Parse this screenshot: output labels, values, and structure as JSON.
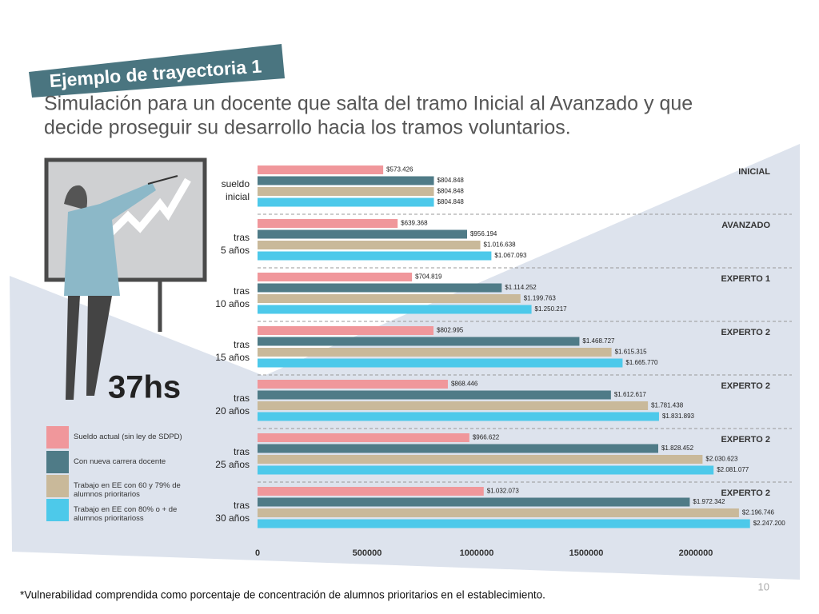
{
  "title": "Ejemplo de trayectoria 1",
  "subtitle": [
    "Simulación para un docente que salta del tramo Inicial al Avanzado y que",
    "decide proseguir su desarrollo hacia los tramos voluntarios."
  ],
  "hours": "37hs",
  "footnote": "*Vulnerabilidad comprendida como porcentaje de concentración de alumnos prioritarios en el establecimiento.",
  "page_number": "10",
  "chart_data": {
    "type": "bar",
    "orientation": "horizontal",
    "categories": [
      [
        "sueldo",
        "inicial"
      ],
      [
        "tras",
        "5 años"
      ],
      [
        "tras",
        "10 años"
      ],
      [
        "tras",
        "15 años"
      ],
      [
        "tras",
        "20 años"
      ],
      [
        "tras",
        "25 años"
      ],
      [
        "tras",
        "30 años"
      ]
    ],
    "tiers": [
      "INICIAL",
      "AVANZADO",
      "EXPERTO 1",
      "EXPERTO 2",
      "EXPERTO 2",
      "EXPERTO 2",
      "EXPERTO 2"
    ],
    "series": [
      {
        "name": "Sueldo actual (sin ley de SDPD)",
        "color": "#f0979b",
        "values": [
          573426,
          639368,
          704819,
          802995,
          868446,
          966622,
          1032073
        ],
        "value_labels": [
          "$573.426",
          "$639.368",
          "$704.819",
          "$802.995",
          "$868.446",
          "$966.622",
          "$1.032.073"
        ]
      },
      {
        "name": "Con nueva carrera docente",
        "color": "#4f7b87",
        "values": [
          804848,
          956194,
          1114252,
          1468727,
          1612617,
          1828452,
          1972342
        ],
        "value_labels": [
          "$804.848",
          "$956.194",
          "$1.114.252",
          "$1.468.727",
          "$1.612.617",
          "$1.828.452",
          "$1.972.342"
        ]
      },
      {
        "name": "Trabajo en EE con 60 y 79% de alumnos prioritarios",
        "color": "#c9b99a",
        "values": [
          804848,
          1016638,
          1199763,
          1615315,
          1781438,
          2030623,
          2196746
        ],
        "value_labels": [
          "$804.848",
          "$1.016.638",
          "$1.199.763",
          "$1.615.315",
          "$1.781.438",
          "$2.030.623",
          "$2.196.746"
        ]
      },
      {
        "name": "Trabajo en EE con 80% o + de alumnos prioritarioss",
        "color": "#4dc9ea",
        "values": [
          804848,
          1067093,
          1250217,
          1665770,
          1831893,
          2081077,
          2247200
        ],
        "value_labels": [
          "$804.848",
          "$1.067.093",
          "$1.250.217",
          "$1.665.770",
          "$1.831.893",
          "$2.081.077",
          "$2.247.200"
        ]
      }
    ],
    "xlim": [
      0,
      2000000
    ],
    "xticks": [
      0,
      500000,
      1000000,
      1500000,
      2000000
    ]
  }
}
